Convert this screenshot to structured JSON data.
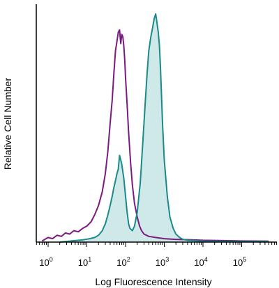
{
  "chart_data": {
    "type": "area",
    "xlabel": "Log Fluorescence Intensity",
    "ylabel": "Relative Cell Number",
    "x_scale": "log",
    "xlim": [
      0.5,
      500000
    ],
    "ylim": [
      0,
      100
    ],
    "grid": false,
    "x_ticks": [
      {
        "base": "10",
        "exp": "0",
        "value": 1
      },
      {
        "base": "10",
        "exp": "1",
        "value": 10
      },
      {
        "base": "10",
        "exp": "2",
        "value": 100
      },
      {
        "base": "10",
        "exp": "3",
        "value": 1000
      },
      {
        "base": "10",
        "exp": "4",
        "value": 10000
      },
      {
        "base": "10",
        "exp": "5",
        "value": 100000
      }
    ],
    "series": [
      {
        "color": "#7b1a80",
        "filled": false,
        "x": [
          0.7,
          1.0,
          1.3,
          1.7,
          2.2,
          2.8,
          3.6,
          4.6,
          6.0,
          7.8,
          10,
          13,
          16,
          20,
          25,
          30,
          35,
          40,
          45,
          50,
          55,
          60,
          65,
          70,
          75,
          80,
          85,
          90,
          95,
          100,
          110,
          120,
          135,
          150,
          170,
          200,
          230,
          260,
          300,
          400,
          600,
          1000,
          2000,
          5000,
          10000,
          50000,
          100000,
          500000
        ],
        "y": [
          0.5,
          2,
          1.5,
          3,
          2.5,
          4,
          3.5,
          5,
          4.5,
          6,
          7,
          9,
          12,
          16,
          22,
          30,
          40,
          52,
          62,
          74,
          84,
          88,
          92,
          93,
          87,
          91,
          90,
          86,
          80,
          72,
          60,
          48,
          35,
          25,
          17,
          11,
          7,
          5,
          3.5,
          2.5,
          2,
          1.5,
          1.2,
          1,
          0.8,
          0.6,
          0.5,
          0.4
        ]
      },
      {
        "color": "#1a8a8a",
        "fill": "#cfe8e8",
        "filled": true,
        "x": [
          2,
          4,
          8,
          12,
          16,
          20,
          25,
          30,
          35,
          40,
          45,
          50,
          55,
          60,
          65,
          70,
          75,
          80,
          90,
          100,
          110,
          120,
          130,
          150,
          170,
          200,
          240,
          280,
          320,
          360,
          400,
          450,
          500,
          550,
          600,
          650,
          700,
          750,
          800,
          850,
          900,
          1000,
          1200,
          1400,
          1700,
          2000,
          2500,
          3000,
          4000,
          6000,
          10000,
          50000,
          100000,
          500000
        ],
        "y": [
          0,
          0.5,
          1,
          1.5,
          2,
          3,
          5,
          8,
          12,
          16,
          20,
          24,
          27,
          30,
          32,
          38,
          36,
          34,
          28,
          20,
          13,
          8,
          6,
          5,
          7,
          13,
          26,
          44,
          60,
          74,
          84,
          90,
          94,
          98,
          100,
          96,
          92,
          86,
          76,
          64,
          52,
          36,
          20,
          11,
          6,
          3.5,
          2,
          1.2,
          0.8,
          0.6,
          0.4,
          0.3,
          0.2,
          0.2
        ]
      }
    ]
  }
}
